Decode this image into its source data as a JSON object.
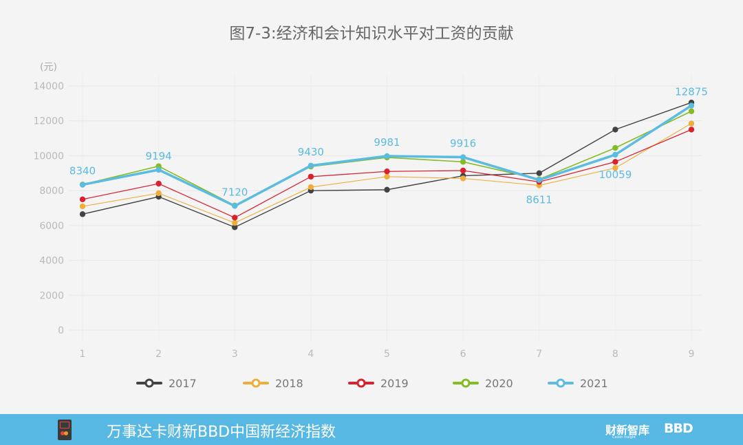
{
  "chart_data": {
    "type": "line",
    "title": "图7-3:经济和会计知识水平对工资的贡献",
    "unit_label": "(元)",
    "xlabel": "",
    "ylabel": "(元)",
    "categories": [
      "1",
      "2",
      "3",
      "4",
      "5",
      "6",
      "7",
      "8",
      "9"
    ],
    "ylim": [
      0,
      14000
    ],
    "yticks": [
      0,
      2000,
      4000,
      6000,
      8000,
      10000,
      12000,
      14000
    ],
    "grid": true,
    "legend_position": "bottom",
    "series": [
      {
        "name": "2017",
        "color": "#434343",
        "values": [
          6650,
          7650,
          5900,
          8000,
          8050,
          8850,
          9000,
          11500,
          13050
        ]
      },
      {
        "name": "2018",
        "color": "#efae3c",
        "values": [
          7100,
          7850,
          6150,
          8200,
          8800,
          8700,
          8300,
          9300,
          11850
        ]
      },
      {
        "name": "2019",
        "color": "#d9222e",
        "values": [
          7500,
          8400,
          6450,
          8800,
          9100,
          9150,
          8500,
          9650,
          11500
        ]
      },
      {
        "name": "2020",
        "color": "#84bc24",
        "values": [
          8350,
          9400,
          7150,
          9380,
          9900,
          9650,
          8650,
          10450,
          12550
        ]
      },
      {
        "name": "2021",
        "color": "#5bbbe0",
        "values": [
          8340,
          9194,
          7120,
          9430,
          9981,
          9916,
          8611,
          10059,
          12875
        ]
      }
    ],
    "data_labels": [
      {
        "index": 0,
        "text": "8340",
        "position": "above"
      },
      {
        "index": 1,
        "text": "9194",
        "position": "above"
      },
      {
        "index": 2,
        "text": "7120",
        "position": "above"
      },
      {
        "index": 3,
        "text": "9430",
        "position": "above"
      },
      {
        "index": 4,
        "text": "9981",
        "position": "above"
      },
      {
        "index": 5,
        "text": "9916",
        "position": "above"
      },
      {
        "index": 6,
        "text": "8611",
        "position": "below"
      },
      {
        "index": 7,
        "text": "10059",
        "position": "below"
      },
      {
        "index": 8,
        "text": "12875",
        "position": "above"
      }
    ]
  },
  "footer": {
    "title": "万事达卡财新BBD中国新经济指数",
    "brand": "财新智库",
    "brand_sub": "Caixin Insight",
    "bbd": "BBD"
  }
}
